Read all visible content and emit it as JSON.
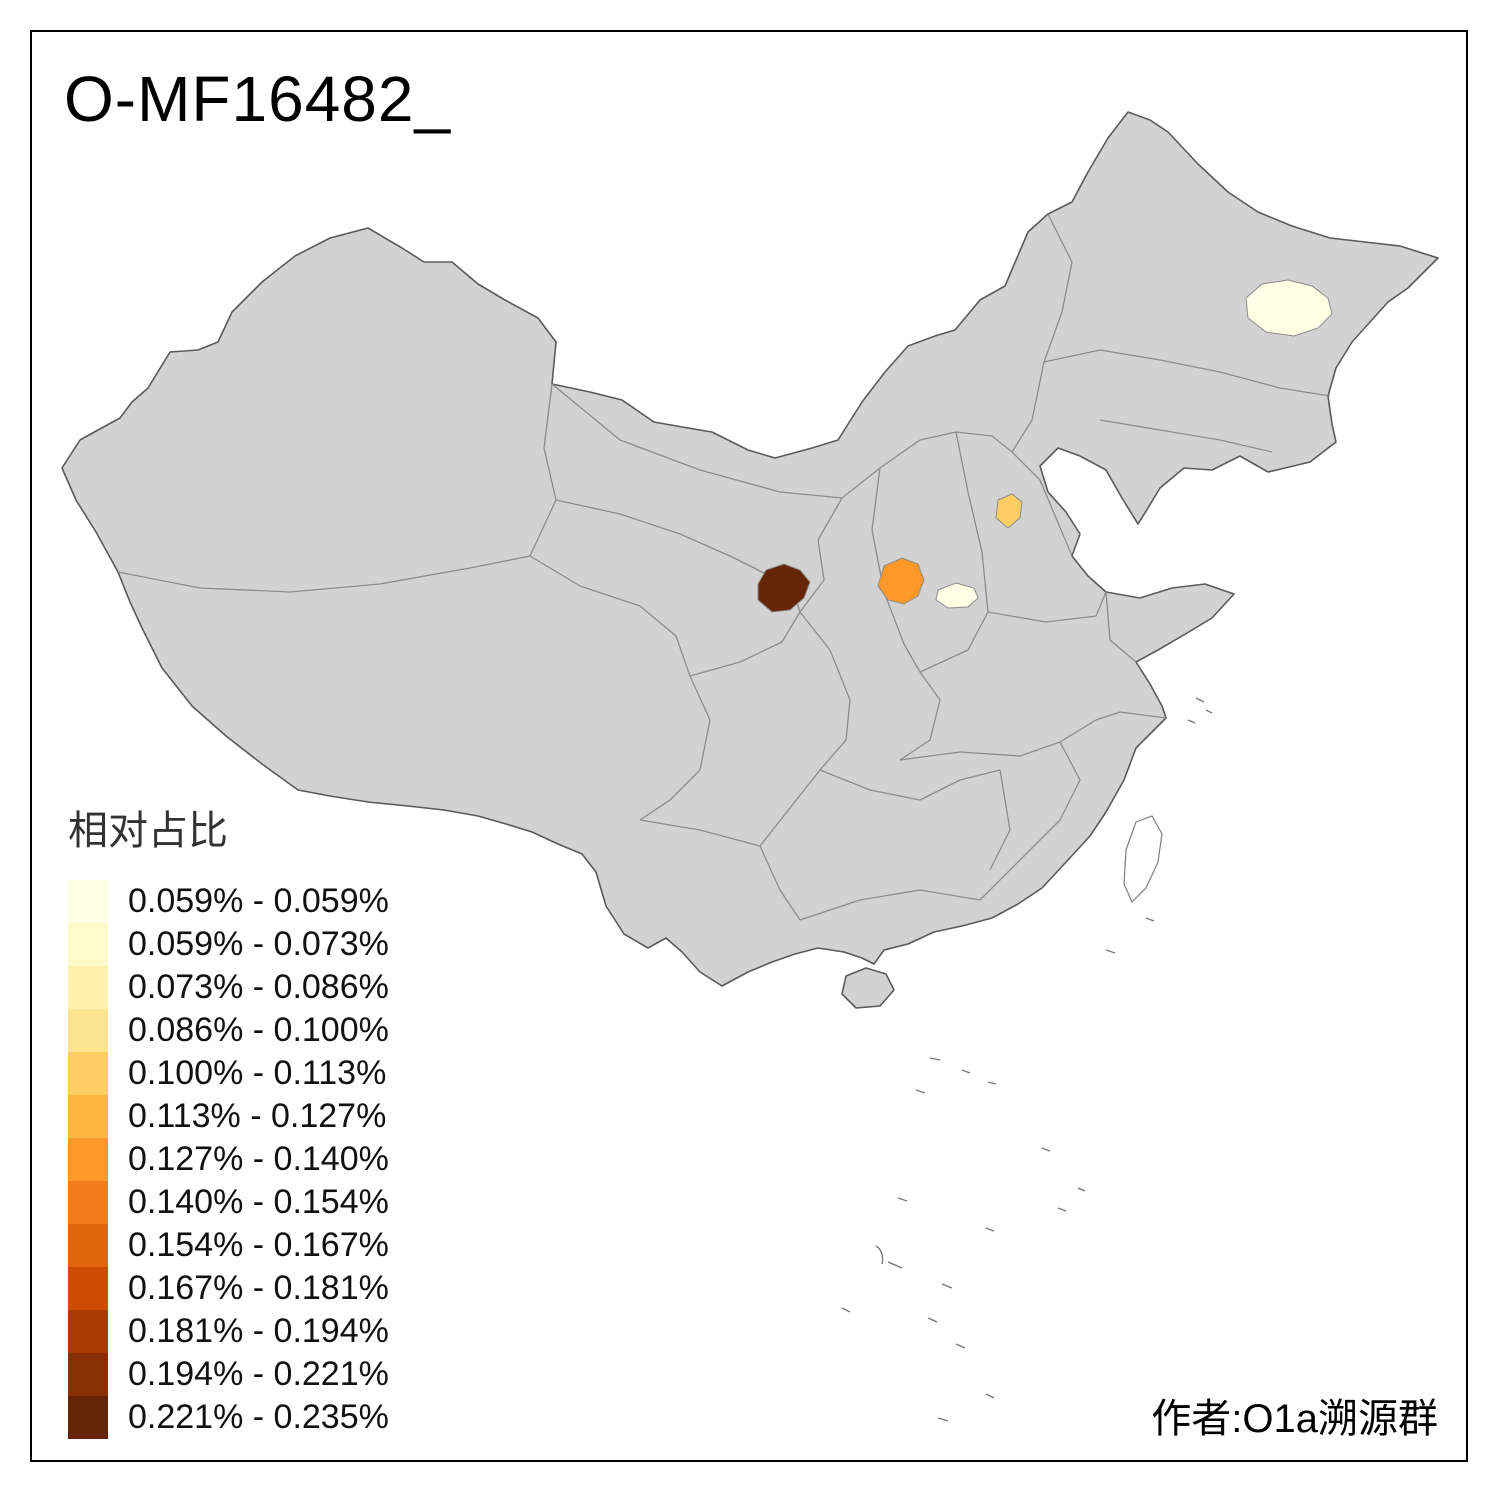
{
  "title": "O-MF16482_",
  "credit": "作者:O1a溯源群",
  "legend": {
    "title": "相对占比",
    "items": [
      {
        "color": "#FFFFE5",
        "label": "0.059% - 0.059%"
      },
      {
        "color": "#FFFACA",
        "label": "0.059% - 0.073%"
      },
      {
        "color": "#FFF0AE",
        "label": "0.073% - 0.086%"
      },
      {
        "color": "#FEE391",
        "label": "0.086% - 0.100%"
      },
      {
        "color": "#FECE65",
        "label": "0.100% - 0.113%"
      },
      {
        "color": "#FEB642",
        "label": "0.113% - 0.127%"
      },
      {
        "color": "#FE9929",
        "label": "0.127% - 0.140%"
      },
      {
        "color": "#F27E1B",
        "label": "0.140% - 0.154%"
      },
      {
        "color": "#E1640E",
        "label": "0.154% - 0.167%"
      },
      {
        "color": "#CC4C02",
        "label": "0.167% - 0.181%"
      },
      {
        "color": "#AA3C03",
        "label": "0.181% - 0.194%"
      },
      {
        "color": "#882F05",
        "label": "0.194% - 0.221%"
      },
      {
        "color": "#662506",
        "label": "0.221% - 0.235%"
      }
    ]
  },
  "map": {
    "base_fill": "#D2D2D2",
    "province_border_color": "#8C8C8C",
    "outline_color": "#5A5A5A",
    "highlighted_regions": [
      {
        "name": "northeast-heilongjiang",
        "color": "#FFFFE5"
      },
      {
        "name": "hebei-central",
        "color": "#FECE65"
      },
      {
        "name": "shanxi-southwest",
        "color": "#FE9929"
      },
      {
        "name": "henan-north",
        "color": "#FFFFE5"
      },
      {
        "name": "gansu-south",
        "color": "#662506"
      }
    ]
  }
}
